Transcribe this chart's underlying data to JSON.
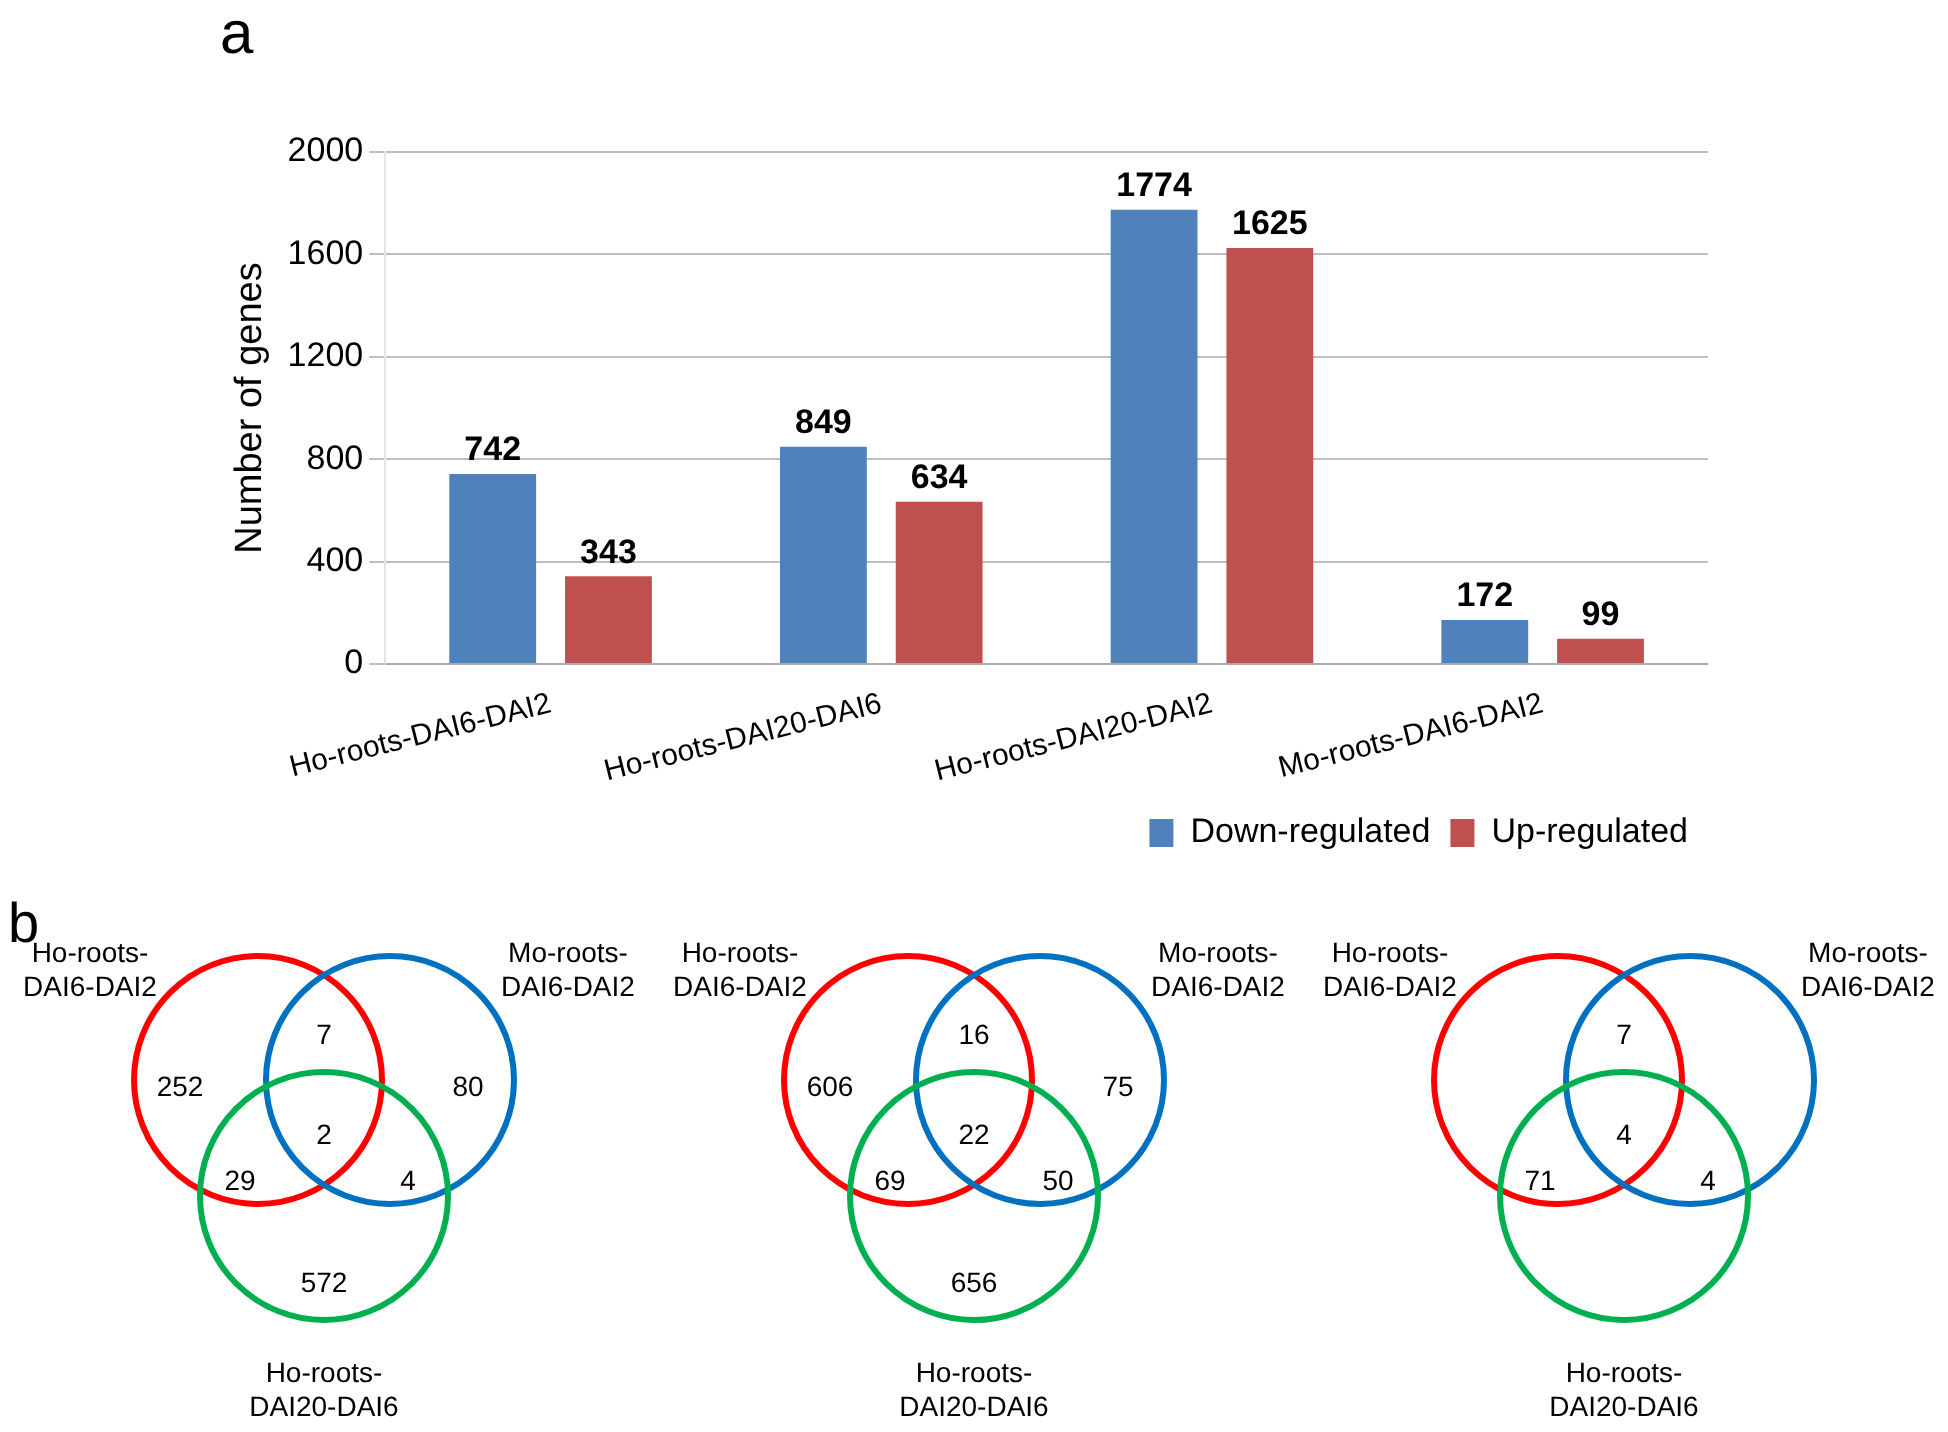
{
  "chart_data": [
    {
      "type": "bar",
      "title": "a",
      "ylabel": "Number of genes",
      "categories": [
        "Ho-roots-DAI6-DAI2",
        "Ho-roots-DAI20-DAI6",
        "Ho-roots-DAI20-DAI2",
        "Mo-roots-DAI6-DAI2"
      ],
      "series": [
        {
          "name": "Down-regulated",
          "color": "#4f81bd",
          "values": [
            742,
            849,
            1774,
            172
          ]
        },
        {
          "name": "Up-regulated",
          "color": "#c0504d",
          "values": [
            343,
            634,
            1625,
            99
          ]
        }
      ],
      "ylim": [
        0,
        2000
      ],
      "yticks": [
        0,
        400,
        800,
        1200,
        1600,
        2000
      ],
      "grid": "y",
      "legend": "bottom right",
      "data_labels": true
    },
    {
      "type": "other",
      "title": "b",
      "annotations": [
        "Ho-roots-DAI6-DAI2",
        "Mo-roots-DAI6-DAI2",
        "Ho-roots-DAI20-DAI6",
        "252",
        "7",
        "80",
        "29",
        "2",
        "4",
        "572"
      ]
    },
    {
      "type": "other",
      "annotations": [
        "Ho-roots-DAI6-DAI2",
        "Mo-roots-DAI6-DAI2",
        "Ho-roots-DAI20-DAI6",
        "606",
        "16",
        "75",
        "69",
        "22",
        "50",
        "656"
      ]
    },
    {
      "type": "other",
      "annotations": [
        "Ho-roots-DAI6-DAI2",
        "Mo-roots-DAI6-DAI2",
        "Ho-roots-DAI20-DAI6",
        null,
        "7",
        null,
        "71",
        "4",
        "4",
        null
      ]
    }
  ]
}
